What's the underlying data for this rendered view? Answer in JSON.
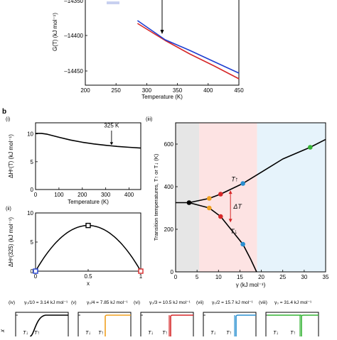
{
  "panel_labels": {
    "b": "b",
    "i": "(i)",
    "ii": "(ii)",
    "iii": "(iii)",
    "iv": "(iv)",
    "v": "(v)",
    "vi": "(vi)",
    "vii": "(vii)",
    "viii": "(viii)"
  },
  "colors": {
    "red": "#d62728",
    "blue": "#1f3fd1",
    "orange": "#f0a020",
    "cyan": "#2a8fd0",
    "green": "#33b233",
    "shade_gray": "#e6e6e6",
    "shade_pink": "#fde3e3",
    "shade_blue": "#e6f3fb"
  },
  "chart_data": [
    {
      "id": "a",
      "type": "line",
      "xlabel": "Temperature  (K)",
      "ylabel": "G(T)  (kJ mol⁻¹)",
      "xlim": [
        200,
        450
      ],
      "ylim": [
        -14470,
        -14330
      ],
      "xticks": [
        200,
        250,
        300,
        350,
        400,
        450
      ],
      "yticks": [
        -14400,
        -14450
      ],
      "yticks_top_partial": "–14350",
      "series": [
        {
          "color": "red",
          "x": [
            285,
            330,
            370,
            410,
            450
          ],
          "y": [
            -14383,
            -14407,
            -14426,
            -14443,
            -14461
          ]
        },
        {
          "color": "blue",
          "x": [
            285,
            330,
            370,
            410,
            450
          ],
          "y": [
            -14379,
            -14406,
            -14421,
            -14437,
            -14453
          ]
        }
      ],
      "annotation_arrow_x": 325
    },
    {
      "id": "b-i",
      "type": "line",
      "xlabel": "Temperature  (K)",
      "ylabel": "ΔHᶜ(T)  (kJ mol⁻¹)",
      "xlim": [
        0,
        450
      ],
      "ylim": [
        0,
        12
      ],
      "xticks": [
        0,
        100,
        200,
        300,
        400
      ],
      "yticks": [
        0,
        5,
        10
      ],
      "series": [
        {
          "color": "black",
          "x": [
            0,
            25,
            50,
            100,
            150,
            200,
            250,
            300,
            325,
            350,
            400,
            450
          ],
          "y": [
            10.1,
            10.1,
            9.95,
            9.4,
            8.9,
            8.5,
            8.2,
            7.95,
            7.85,
            7.75,
            7.6,
            7.45
          ]
        }
      ],
      "annotation": {
        "text": "325 K",
        "x": 325
      }
    },
    {
      "id": "b-ii",
      "type": "line",
      "xlabel": "x",
      "ylabel": "ΔHᶜ(325)  (kJ mol⁻¹)",
      "xlim": [
        0,
        1
      ],
      "ylim": [
        0,
        10
      ],
      "xticks": [
        0,
        0.5,
        1
      ],
      "yticks": [
        0,
        5,
        10
      ],
      "series": [
        {
          "color": "black",
          "x": [
            0,
            0.1,
            0.2,
            0.3,
            0.4,
            0.5,
            0.6,
            0.7,
            0.8,
            0.9,
            1.0
          ],
          "y": [
            0,
            2.83,
            5.02,
            6.59,
            7.53,
            7.85,
            7.53,
            6.59,
            5.02,
            2.83,
            0
          ]
        }
      ],
      "markers": [
        {
          "x": 0,
          "y": 0,
          "color": "blue",
          "shape": "open-square"
        },
        {
          "x": 0.5,
          "y": 7.85,
          "color": "black",
          "shape": "open-square"
        },
        {
          "x": 1,
          "y": 0,
          "color": "red",
          "shape": "open-square"
        }
      ]
    },
    {
      "id": "b-iii",
      "type": "line",
      "xlabel": "γ  (kJ mol⁻¹)",
      "ylabel": "Transition temperatures,  T↑ or T↓  (K)",
      "xlim": [
        0,
        35
      ],
      "ylim": [
        0,
        700
      ],
      "xticks": [
        0,
        5,
        10,
        15,
        20,
        25,
        30,
        35
      ],
      "yticks": [
        0,
        200,
        400,
        600
      ],
      "shaded_regions": [
        {
          "from": 0,
          "to": 5.5,
          "color": "shade_gray"
        },
        {
          "from": 5.5,
          "to": 19.0,
          "color": "shade_pink"
        },
        {
          "from": 19.0,
          "to": 35,
          "color": "shade_blue"
        }
      ],
      "series": [
        {
          "name": "T↑",
          "x": [
            0,
            3.14,
            7.85,
            10.5,
            15.7,
            20,
            25,
            31.4,
            35
          ],
          "y": [
            325,
            325,
            345,
            365,
            415,
            468,
            530,
            585,
            622
          ]
        },
        {
          "name": "T↓",
          "x": [
            3.14,
            7.85,
            10.5,
            15.7,
            17.5,
            18.9
          ],
          "y": [
            325,
            300,
            260,
            130,
            60,
            0
          ]
        }
      ],
      "markers": [
        {
          "x": 3.14,
          "y": 325,
          "color": "black"
        },
        {
          "x": 7.85,
          "y": 345,
          "color": "orange"
        },
        {
          "x": 7.85,
          "y": 300,
          "color": "orange"
        },
        {
          "x": 10.5,
          "y": 365,
          "color": "red"
        },
        {
          "x": 10.5,
          "y": 260,
          "color": "red"
        },
        {
          "x": 15.7,
          "y": 415,
          "color": "cyan"
        },
        {
          "x": 15.7,
          "y": 130,
          "color": "cyan"
        },
        {
          "x": 31.4,
          "y": 585,
          "color": "green"
        }
      ],
      "labels": {
        "t_up": "T↑",
        "t_down": "T↓",
        "delta": "ΔT"
      }
    }
  ],
  "bottom_panels": [
    {
      "id": "iv",
      "title": "γ₀/10 = 3.14 kJ mol⁻¹",
      "color": "black"
    },
    {
      "id": "v",
      "title": "γ₀/4 = 7.85 kJ mol⁻¹",
      "color": "orange"
    },
    {
      "id": "vi",
      "title": "γ₀/3 = 10.5 kJ mol⁻¹",
      "color": "red"
    },
    {
      "id": "vii",
      "title": "γ₀/2 = 15.7 kJ mol⁻¹",
      "color": "cyan"
    },
    {
      "id": "viii",
      "title": "γ₀ = 31.4 kJ mol⁻¹",
      "color": "green"
    }
  ],
  "bottom_ylabel": "x",
  "bottom_tlabels": {
    "down": "T↓",
    "up": "T↑"
  }
}
